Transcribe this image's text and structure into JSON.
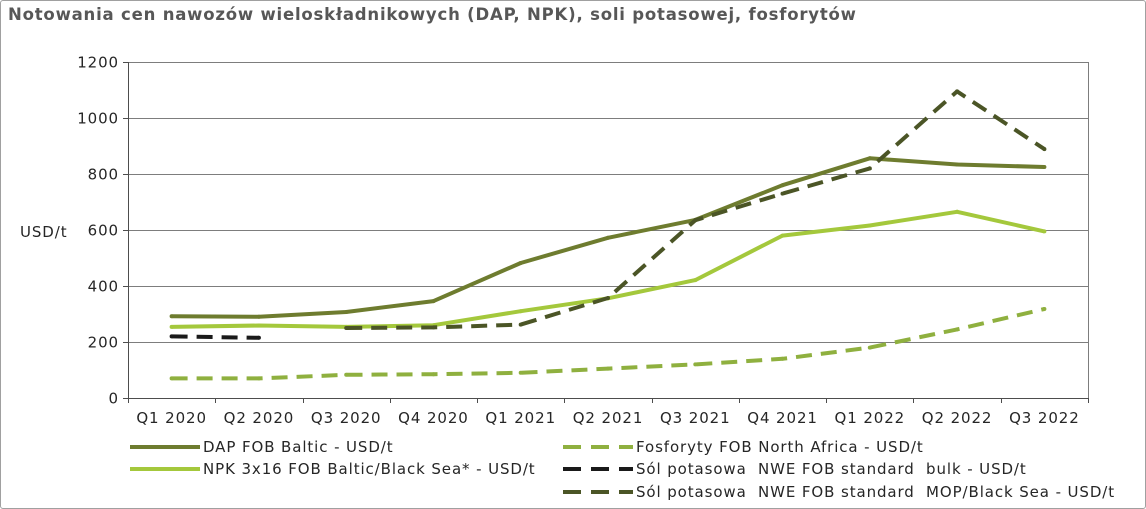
{
  "chart_data": {
    "type": "line",
    "title": "Notowania cen nawozów wieloskładnikowych (DAP, NPK), soli potasowej, fosforytów",
    "ylabel": "USD/t",
    "ylim": [
      0,
      1200
    ],
    "yticks": [
      0,
      200,
      400,
      600,
      800,
      1000,
      1200
    ],
    "grid": "horizontal",
    "legend_position": "bottom",
    "categories": [
      "Q1 2020",
      "Q2 2020",
      "Q3 2020",
      "Q4 2020",
      "Q1 2021",
      "Q2 2021",
      "Q3 2021",
      "Q4 2021",
      "Q1 2022",
      "Q2 2022",
      "Q3 2022"
    ],
    "series": [
      {
        "name": "DAP FOB Baltic - USD/t",
        "color": "#6e7c2f",
        "line_style": "solid",
        "values": [
          292,
          290,
          307,
          346,
          482,
          572,
          636,
          760,
          856,
          834,
          825
        ]
      },
      {
        "name": "NPK 3x16 FOB Baltic/Black Sea* - USD/t",
        "color": "#a4c83c",
        "line_style": "solid",
        "values": [
          254,
          259,
          254,
          260,
          310,
          356,
          421,
          580,
          616,
          665,
          595
        ]
      },
      {
        "name": "Fosforyty FOB North Africa - USD/t",
        "color": "#8fb03f",
        "line_style": "dashed",
        "values": [
          70,
          70,
          83,
          85,
          90,
          105,
          120,
          140,
          180,
          245,
          318
        ]
      },
      {
        "name": "Sól potasowa  NWE FOB standard  bulk - USD/t",
        "color": "#1a1a1a",
        "line_style": "dashed",
        "values": [
          220,
          215,
          null,
          null,
          null,
          null,
          null,
          null,
          null,
          null,
          null
        ]
      },
      {
        "name": "Sól potasowa  NWE FOB standard  MOP/Black Sea - USD/t",
        "color": "#4b5526",
        "line_style": "dashed",
        "values": [
          null,
          null,
          250,
          252,
          262,
          357,
          635,
          730,
          820,
          1095,
          889
        ]
      }
    ]
  }
}
